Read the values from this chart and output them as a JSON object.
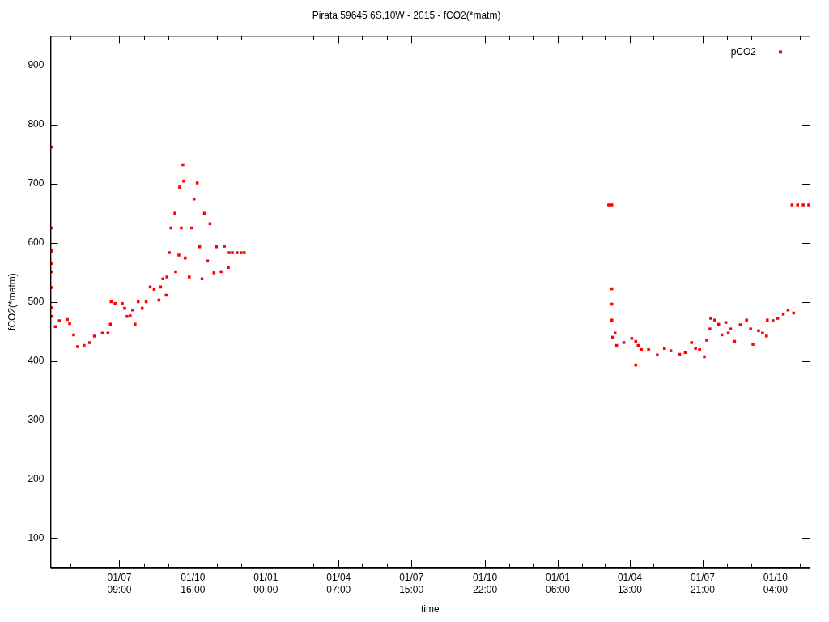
{
  "chart_data": {
    "type": "scatter",
    "title": "Pirata 59645 6S,10W - 2015 - fCO2(*matm)",
    "xlabel": "time",
    "ylabel": "fCO2(*matm)",
    "xlim": [
      "2015-04-06",
      "2017-11-13"
    ],
    "xticks": [
      {
        "value": "2015-05-01",
        "label": null
      },
      {
        "value": "2015-06-01",
        "label": null
      },
      {
        "value": "2015-07-01T09:00",
        "label": "01/07\n09:00"
      },
      {
        "value": "2015-08-01",
        "label": null
      },
      {
        "value": "2015-09-01",
        "label": null
      },
      {
        "value": "2015-10-01T16:00",
        "label": "01/10\n16:00"
      },
      {
        "value": "2015-11-01",
        "label": null
      },
      {
        "value": "2015-12-01",
        "label": null
      },
      {
        "value": "2016-01-01T00:00",
        "label": "01/01\n00:00"
      },
      {
        "value": "2016-02-01",
        "label": null
      },
      {
        "value": "2016-03-01",
        "label": null
      },
      {
        "value": "2016-04-01T07:00",
        "label": "01/04\n07:00"
      },
      {
        "value": "2016-05-01",
        "label": null
      },
      {
        "value": "2016-06-01",
        "label": null
      },
      {
        "value": "2016-07-01T15:00",
        "label": "01/07\n15:00"
      },
      {
        "value": "2016-08-01",
        "label": null
      },
      {
        "value": "2016-09-01",
        "label": null
      },
      {
        "value": "2016-10-01T22:00",
        "label": "01/10\n22:00"
      },
      {
        "value": "2016-11-01",
        "label": null
      },
      {
        "value": "2016-12-01",
        "label": null
      },
      {
        "value": "2017-01-01T06:00",
        "label": "01/01\n06:00"
      },
      {
        "value": "2017-02-01",
        "label": null
      },
      {
        "value": "2017-03-01",
        "label": null
      },
      {
        "value": "2017-04-01T13:00",
        "label": "01/04\n13:00"
      },
      {
        "value": "2017-05-01",
        "label": null
      },
      {
        "value": "2017-06-01",
        "label": null
      },
      {
        "value": "2017-07-01T21:00",
        "label": "01/07\n21:00"
      },
      {
        "value": "2017-08-01",
        "label": null
      },
      {
        "value": "2017-09-01",
        "label": null
      },
      {
        "value": "2017-10-01T04:00",
        "label": "01/10\n04:00"
      },
      {
        "value": "2017-11-01",
        "label": null
      }
    ],
    "ylim": [
      50,
      950
    ],
    "yticks": [
      100,
      200,
      300,
      400,
      500,
      600,
      700,
      800,
      900
    ],
    "grid": false,
    "legend": "top right",
    "marker": "square",
    "series": [
      {
        "name": "pCO2",
        "color": "#ff0000",
        "x": [
          "2015-04-07",
          "2015-04-07",
          "2015-04-07",
          "2015-04-07",
          "2015-04-07",
          "2015-04-07",
          "2015-04-07",
          "2015-04-08",
          "2015-04-12",
          "2015-04-17",
          "2015-04-27",
          "2015-04-30",
          "2015-05-05",
          "2015-05-10",
          "2015-05-18",
          "2015-05-25",
          "2015-05-31",
          "2015-06-10",
          "2015-06-17",
          "2015-06-20",
          "2015-06-21",
          "2015-06-26",
          "2015-07-05",
          "2015-07-08",
          "2015-07-11",
          "2015-07-15",
          "2015-07-18",
          "2015-07-21",
          "2015-07-25",
          "2015-07-30",
          "2015-08-04",
          "2015-08-09",
          "2015-08-14",
          "2015-08-20",
          "2015-08-22",
          "2015-08-25",
          "2015-08-29",
          "2015-08-30",
          "2015-09-02",
          "2015-09-04",
          "2015-09-09",
          "2015-09-10",
          "2015-09-14",
          "2015-09-15",
          "2015-09-17",
          "2015-09-19",
          "2015-09-20",
          "2015-09-22",
          "2015-09-27",
          "2015-09-30",
          "2015-10-03",
          "2015-10-07",
          "2015-10-10",
          "2015-10-13",
          "2015-10-16",
          "2015-10-20",
          "2015-10-23",
          "2015-10-28",
          "2015-10-31",
          "2015-11-06",
          "2015-11-10",
          "2015-11-15",
          "2015-11-16",
          "2015-11-20",
          "2015-11-26",
          "2015-12-01",
          "2015-12-05",
          "2017-03-06",
          "2017-03-10",
          "2017-03-10",
          "2017-03-10",
          "2017-03-10",
          "2017-03-11",
          "2017-03-14",
          "2017-03-16",
          "2017-03-25",
          "2017-04-04",
          "2017-04-09",
          "2017-04-09",
          "2017-04-12",
          "2017-04-16",
          "2017-04-25",
          "2017-05-06",
          "2017-05-15",
          "2017-05-23",
          "2017-06-03",
          "2017-06-10",
          "2017-06-18",
          "2017-06-23",
          "2017-06-28",
          "2017-07-04",
          "2017-07-07",
          "2017-07-11",
          "2017-07-12",
          "2017-07-17",
          "2017-07-22",
          "2017-07-26",
          "2017-07-31",
          "2017-08-03",
          "2017-08-06",
          "2017-08-11",
          "2017-08-18",
          "2017-08-26",
          "2017-08-31",
          "2017-09-03",
          "2017-09-10",
          "2017-09-15",
          "2017-09-20",
          "2017-09-21",
          "2017-09-28",
          "2017-10-04",
          "2017-10-11",
          "2017-10-17",
          "2017-10-24",
          "2017-10-22",
          "2017-10-29",
          "2017-11-05",
          "2017-11-12"
        ],
        "values": [
          762,
          625,
          586,
          565,
          551,
          524,
          490,
          475,
          458,
          468,
          470,
          463,
          444,
          424,
          426,
          431,
          442,
          447,
          447,
          462,
          500,
          497,
          497,
          489,
          475,
          476,
          486,
          462,
          500,
          489,
          500,
          525,
          521,
          503,
          525,
          539,
          511,
          542,
          583,
          625,
          650,
          551,
          579,
          694,
          625,
          732,
          704,
          574,
          542,
          625,
          674,
          701,
          593,
          539,
          650,
          569,
          632,
          549,
          593,
          551,
          594,
          558,
          583,
          583,
          583,
          583,
          583,
          664,
          664,
          522,
          496,
          469,
          440,
          447,
          426,
          431,
          438,
          433,
          393,
          426,
          419,
          419,
          410,
          421,
          417,
          411,
          414,
          431,
          421,
          419,
          407,
          435,
          454,
          472,
          469,
          462,
          444,
          465,
          447,
          454,
          433,
          461,
          469,
          454,
          428,
          451,
          447,
          442,
          469,
          468,
          472,
          479,
          486,
          481,
          664,
          664,
          664,
          664
        ]
      }
    ]
  }
}
